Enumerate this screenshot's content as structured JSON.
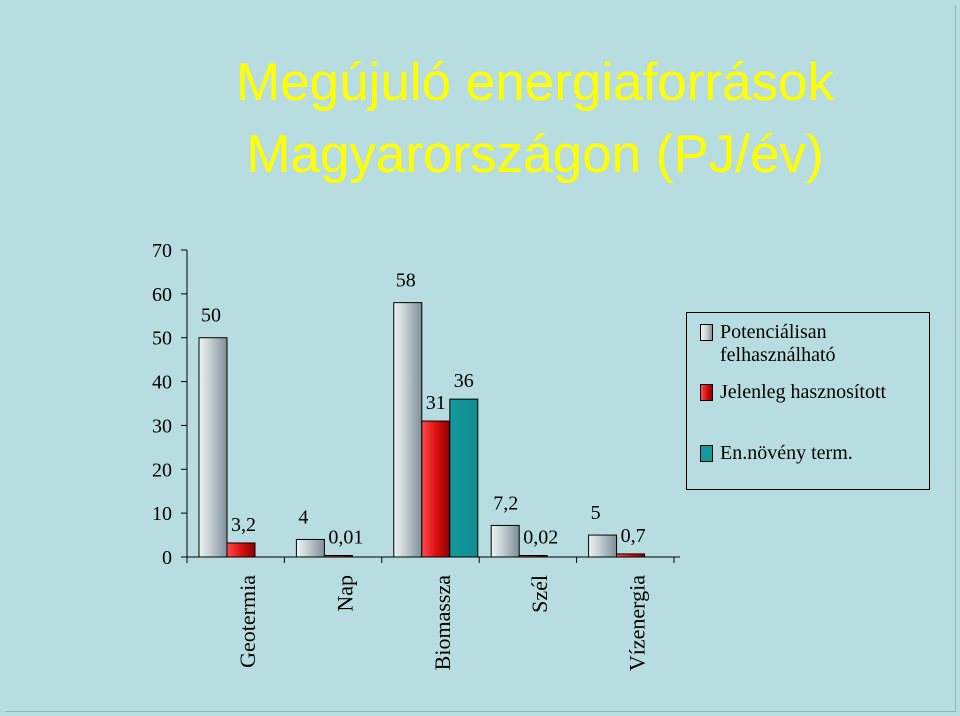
{
  "title": {
    "line1": "Megújuló energiaforrások",
    "line2": "Magyarországon  (PJ/év)"
  },
  "colors": {
    "background": "#b8dde1",
    "title": "#ffff00",
    "series": [
      "#b4c4cc",
      "#dd1111",
      "#139a9e"
    ]
  },
  "chart_data": {
    "type": "bar",
    "title": "Megújuló energiaforrások Magyarországon  (PJ/év)",
    "xlabel": "",
    "ylabel": "",
    "ylim": [
      0,
      70
    ],
    "yticks": [
      0,
      10,
      20,
      30,
      40,
      50,
      60,
      70
    ],
    "grid": false,
    "legend_position": "right",
    "categories": [
      "Geotermia",
      "Nap",
      "Biomassza",
      "Szél",
      "Vízenergia"
    ],
    "series": [
      {
        "name": "Potenciálisan felhasználható",
        "values": [
          50,
          4,
          58,
          7.2,
          5
        ],
        "labels": [
          "50",
          "4",
          "58",
          "7,2",
          "5"
        ]
      },
      {
        "name": "Jelenleg hasznosított",
        "values": [
          3.2,
          0.01,
          31,
          0.02,
          0.7
        ],
        "labels": [
          "3,2",
          "0,01",
          "31",
          "0,02",
          "0,7"
        ]
      },
      {
        "name": "En.növény term.",
        "values": [
          null,
          null,
          36,
          null,
          null
        ],
        "labels": [
          "",
          "",
          "36",
          "",
          ""
        ]
      }
    ]
  },
  "legend": {
    "items": [
      {
        "line1": "Potenciálisan",
        "line2": "felhasználható"
      },
      {
        "line1": "Jelenleg hasznosított",
        "line2": ""
      },
      {
        "line1": "En.növény term.",
        "line2": ""
      }
    ]
  }
}
